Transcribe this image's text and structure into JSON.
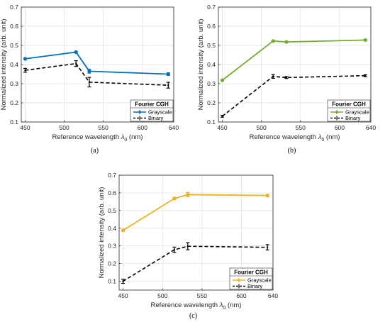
{
  "chart_data": [
    {
      "type": "line",
      "panel_label": "(a)",
      "xlabel": "Reference wavelength λ0 (nm)",
      "xlabel_main": "Reference wavelength ",
      "xlabel_symbol": "λ",
      "xlabel_sub": "0",
      "xlabel_unit": " (nm)",
      "ylabel": "Normalized intensity (arb. unit)",
      "xlim": [
        445,
        640
      ],
      "ylim": [
        0.1,
        0.7
      ],
      "xticks": [
        "450",
        "500",
        "550",
        "600",
        "640"
      ],
      "xtick_values": [
        450,
        500,
        550,
        600,
        640
      ],
      "yticks": [
        "0.1",
        "0.2",
        "0.3",
        "0.4",
        "0.5",
        "0.6",
        "0.7"
      ],
      "ytick_values": [
        0.1,
        0.2,
        0.3,
        0.4,
        0.5,
        0.6,
        0.7
      ],
      "grid": true,
      "legend_title": "Fourier CGH",
      "legend_position": "bottom-right",
      "series": [
        {
          "name": "Grayscale",
          "color": "#0072BD",
          "style": "solid",
          "x": [
            450,
            515,
            532,
            633
          ],
          "y": [
            0.43,
            0.465,
            0.365,
            0.35
          ],
          "err": [
            0.003,
            0.004,
            0.01,
            0.007
          ]
        },
        {
          "name": "Binary",
          "color": "#000000",
          "style": "dashed",
          "x": [
            450,
            515,
            532,
            633
          ],
          "y": [
            0.37,
            0.405,
            0.308,
            0.292
          ],
          "err": [
            0.01,
            0.015,
            0.025,
            0.015
          ]
        }
      ]
    },
    {
      "type": "line",
      "panel_label": "(b)",
      "xlabel": "Reference wavelength λ0 (nm)",
      "xlabel_main": "Reference wavelength ",
      "xlabel_symbol": "λ",
      "xlabel_sub": "0",
      "xlabel_unit": " (nm)",
      "ylabel": "Normalized intensity (arb. unit)",
      "xlim": [
        445,
        640
      ],
      "ylim": [
        0.1,
        0.7
      ],
      "xticks": [
        "450",
        "500",
        "550",
        "600",
        "640"
      ],
      "xtick_values": [
        450,
        500,
        550,
        600,
        640
      ],
      "yticks": [
        "0.1",
        "0.2",
        "0.3",
        "0.4",
        "0.5",
        "0.6",
        "0.7"
      ],
      "ytick_values": [
        0.1,
        0.2,
        0.3,
        0.4,
        0.5,
        0.6,
        0.7
      ],
      "grid": true,
      "legend_title": "Fourier CGH",
      "legend_position": "bottom-right",
      "series": [
        {
          "name": "Grayscale",
          "color": "#77AC30",
          "style": "solid",
          "x": [
            450,
            515,
            532,
            633
          ],
          "y": [
            0.318,
            0.523,
            0.518,
            0.528
          ],
          "err": [
            0.003,
            0.004,
            0.004,
            0.004
          ]
        },
        {
          "name": "Binary",
          "color": "#000000",
          "style": "dashed",
          "x": [
            450,
            515,
            532,
            633
          ],
          "y": [
            0.13,
            0.338,
            0.332,
            0.342
          ],
          "err": [
            0.005,
            0.01,
            0.005,
            0.005
          ]
        }
      ]
    },
    {
      "type": "line",
      "panel_label": "(c)",
      "xlabel": "Reference wavelength λ0 (nm)",
      "xlabel_main": "Reference wavelength ",
      "xlabel_symbol": "λ",
      "xlabel_sub": "0",
      "xlabel_unit": " (nm)",
      "ylabel": "Normalized intensity (arb. unit)",
      "xlim": [
        445,
        640
      ],
      "ylim": [
        0.05,
        0.7
      ],
      "xticks": [
        "450",
        "500",
        "550",
        "600",
        "640"
      ],
      "xtick_values": [
        450,
        500,
        550,
        600,
        640
      ],
      "yticks": [
        "0.1",
        "0.2",
        "0.3",
        "0.4",
        "0.5",
        "0.6",
        "0.7"
      ],
      "ytick_values": [
        0.1,
        0.2,
        0.3,
        0.4,
        0.5,
        0.6,
        0.7
      ],
      "grid": true,
      "legend_title": "Fourier CGH",
      "legend_position": "bottom-right",
      "series": [
        {
          "name": "Grayscale",
          "color": "#EDB120",
          "style": "solid",
          "x": [
            450,
            515,
            532,
            633
          ],
          "y": [
            0.388,
            0.568,
            0.59,
            0.585
          ],
          "err": [
            0.003,
            0.006,
            0.012,
            0.006
          ]
        },
        {
          "name": "Binary",
          "color": "#000000",
          "style": "dashed",
          "x": [
            450,
            515,
            532,
            633
          ],
          "y": [
            0.1,
            0.278,
            0.298,
            0.292
          ],
          "err": [
            0.012,
            0.015,
            0.02,
            0.015
          ]
        }
      ]
    }
  ]
}
